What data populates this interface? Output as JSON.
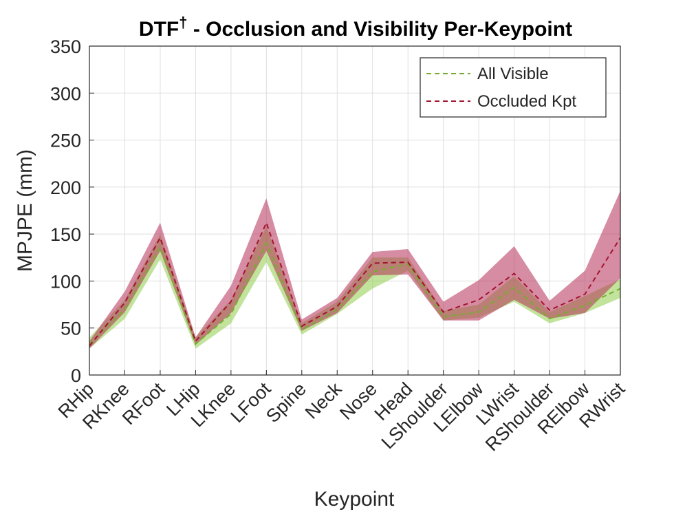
{
  "chart_data": {
    "type": "line",
    "title": "DTF",
    "title_symbol": "†",
    "title_rest": " - Occlusion and Visibility Per-Keypoint",
    "xlabel": "Keypoint",
    "ylabel": "MPJPE (mm)",
    "ylim": [
      0,
      350
    ],
    "yticks": [
      0,
      50,
      100,
      150,
      200,
      250,
      300,
      350
    ],
    "grid": true,
    "legend_position": "top-right",
    "categories": [
      "RHip",
      "RKnee",
      "RFoot",
      "LHip",
      "LKnee",
      "LFoot",
      "Spine",
      "Neck",
      "Nose",
      "Head",
      "LShoulder",
      "LElbow",
      "LWrist",
      "RShoulder",
      "RElbow",
      "RWrist"
    ],
    "series": [
      {
        "name": "All Visible",
        "color": "#77AC30",
        "band_color": "#8fcc4a",
        "values": [
          33,
          70,
          136,
          33,
          65,
          140,
          48,
          70,
          110,
          118,
          62,
          67,
          93,
          60,
          74,
          92
        ],
        "lower": [
          28,
          60,
          123,
          28,
          55,
          120,
          43,
          65,
          92,
          111,
          58,
          61,
          78,
          55,
          66,
          82
        ],
        "upper": [
          40,
          80,
          150,
          40,
          80,
          158,
          55,
          78,
          125,
          125,
          68,
          75,
          105,
          67,
          84,
          102
        ]
      },
      {
        "name": "Occluded Kpt",
        "color": "#A2142F",
        "band_color": "#b52d55",
        "values": [
          31,
          77,
          146,
          36,
          78,
          162,
          52,
          73,
          119,
          120,
          67,
          80,
          108,
          69,
          86,
          146
        ],
        "lower": [
          28,
          67,
          132,
          32,
          66,
          132,
          47,
          66,
          106,
          107,
          58,
          58,
          80,
          60,
          66,
          103
        ],
        "upper": [
          36,
          89,
          162,
          40,
          95,
          188,
          59,
          82,
          131,
          134,
          78,
          101,
          137,
          79,
          111,
          196
        ]
      }
    ]
  }
}
